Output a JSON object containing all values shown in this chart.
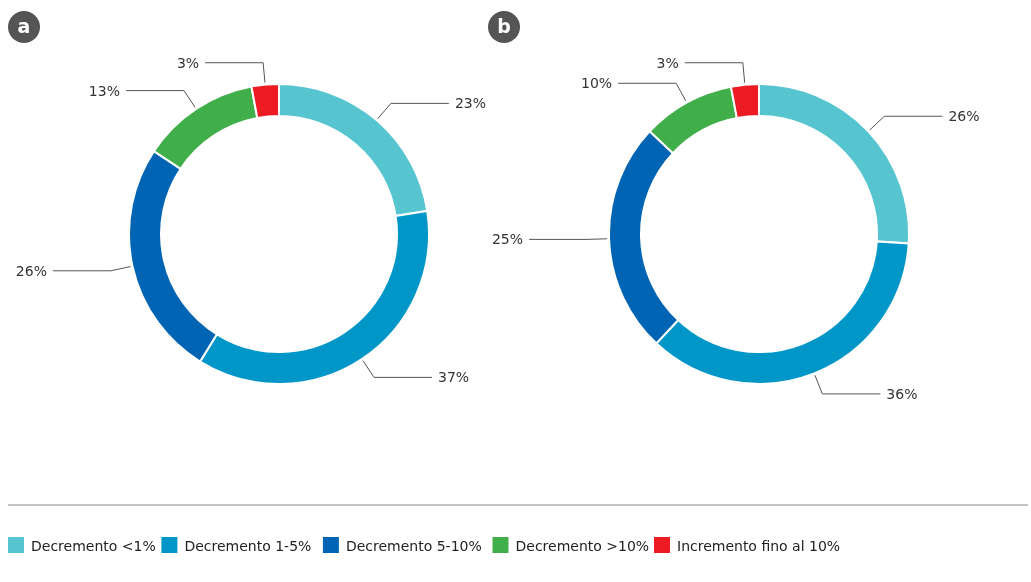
{
  "chart_data": [
    {
      "type": "donut",
      "title": "a",
      "categories": [
        "Decremento <1%",
        "Decremento 1-5%",
        "Decremento 5-10%",
        "Decremento >10%",
        "Incremento fino al 10%"
      ],
      "values": [
        23,
        37,
        26,
        13,
        3
      ],
      "colors": [
        "#56c5d0",
        "#0096c8",
        "#0064b4",
        "#40ae49",
        "#ed1c24"
      ],
      "value_labels": [
        "23%",
        "37%",
        "26%",
        "13%",
        "3%"
      ],
      "legend": "bottom"
    },
    {
      "type": "donut",
      "title": "b",
      "categories": [
        null,
        null,
        null,
        null,
        null
      ],
      "values": [
        26,
        36,
        25,
        10,
        3
      ],
      "colors": [
        "#56c5d0",
        "#0096c8",
        "#0064b4",
        "#40ae49",
        "#ed1c24"
      ],
      "value_labels": [
        "26%",
        "36%",
        "25%",
        "10%",
        "3%"
      ]
    }
  ]
}
